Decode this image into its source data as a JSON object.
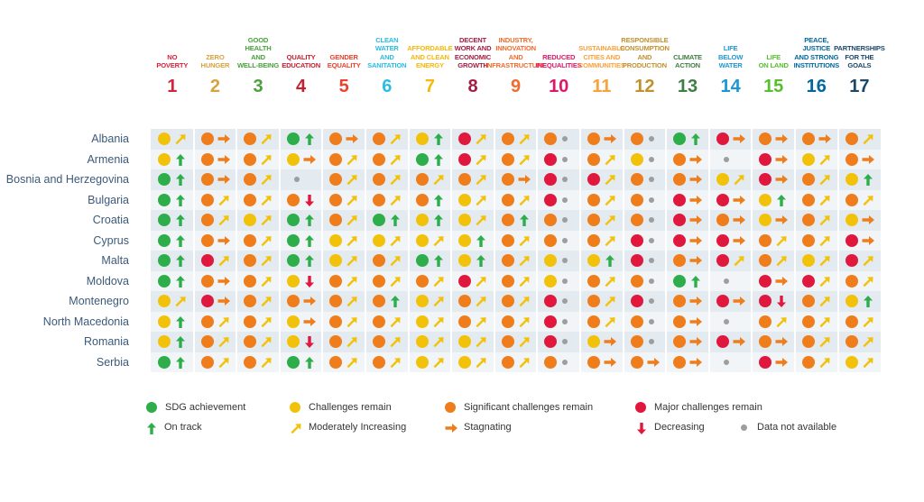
{
  "chart_data": {
    "type": "table",
    "goals": [
      {
        "number": "1",
        "label": [
          "NO",
          "POVERTY"
        ],
        "color": "#d4233c"
      },
      {
        "number": "2",
        "label": [
          "ZERO",
          "HUNGER"
        ],
        "color": "#d8a23c"
      },
      {
        "number": "3",
        "label": [
          "GOOD HEALTH",
          "AND",
          "WELL-BEING"
        ],
        "color": "#4aa13c"
      },
      {
        "number": "4",
        "label": [
          "QUALITY",
          "EDUCATION"
        ],
        "color": "#c6202f"
      },
      {
        "number": "5",
        "label": [
          "GENDER",
          "EQUALITY"
        ],
        "color": "#ef402c"
      },
      {
        "number": "6",
        "label": [
          "CLEAN WATER",
          "AND",
          "SANITATION"
        ],
        "color": "#29bde3"
      },
      {
        "number": "7",
        "label": [
          "AFFORDABLE",
          "AND CLEAN",
          "ENERGY"
        ],
        "color": "#f5b80c"
      },
      {
        "number": "8",
        "label": [
          "DECENT",
          "WORK AND",
          "ECONOMIC",
          "GROWTH"
        ],
        "color": "#a31c44"
      },
      {
        "number": "9",
        "label": [
          "INDUSTRY,",
          "INNOVATION",
          "AND",
          "INFRASTRUCTURE"
        ],
        "color": "#f26b2d"
      },
      {
        "number": "10",
        "label": [
          "REDUCED",
          "INEQUALITIES"
        ],
        "color": "#de1768"
      },
      {
        "number": "11",
        "label": [
          "SUSTAINABLE",
          "CITIES AND",
          "COMMUNITIES"
        ],
        "color": "#f9a13b"
      },
      {
        "number": "12",
        "label": [
          "RESPONSIBLE",
          "CONSUMPTION",
          "AND",
          "PRODUCTION"
        ],
        "color": "#c0912f"
      },
      {
        "number": "13",
        "label": [
          "CLIMATE",
          "ACTION"
        ],
        "color": "#3f7e44"
      },
      {
        "number": "14",
        "label": [
          "LIFE",
          "BELOW",
          "WATER"
        ],
        "color": "#1c97d3"
      },
      {
        "number": "15",
        "label": [
          "LIFE",
          "ON LAND"
        ],
        "color": "#56bf2b"
      },
      {
        "number": "16",
        "label": [
          "PEACE,",
          "JUSTICE",
          "AND STRONG",
          "INSTITUTIONS"
        ],
        "color": "#00689d"
      },
      {
        "number": "17",
        "label": [
          "PARTNERSHIPS",
          "FOR THE",
          "GOALS"
        ],
        "color": "#19486a"
      }
    ],
    "countries": [
      "Albania",
      "Armenia",
      "Bosnia and Herzegovina",
      "Bulgaria",
      "Croatia",
      "Cyprus",
      "Malta",
      "Moldova",
      "Montenegro",
      "North Macedonia",
      "Romania",
      "Serbia"
    ],
    "status_codes": {
      "G": "SDG achievement",
      "Y": "Challenges remain",
      "O": "Significant challenges remain",
      "R": "Major challenges remain",
      "N": "Data not available"
    },
    "trend_codes": {
      "u": "On track",
      "m": "Moderately Increasing",
      "s": "Stagnating",
      "d": "Decreasing",
      "n": "Data not available"
    },
    "cells": [
      [
        "Ym",
        "Os",
        "Om",
        "Gu",
        "Os",
        "Om",
        "Yu",
        "Rm",
        "Om",
        "On",
        "Os",
        "On",
        "Gu",
        "Rs",
        "Os",
        "Os",
        "Om"
      ],
      [
        "Yu",
        "Os",
        "Om",
        "Ys",
        "Om",
        "Om",
        "Gu",
        "Rm",
        "Om",
        "Rn",
        "Om",
        "Yn",
        "Os",
        "Nn",
        "Rs",
        "Ym",
        "Os"
      ],
      [
        "Gu",
        "Os",
        "Om",
        "Nn",
        "Om",
        "Om",
        "Om",
        "Om",
        "Os",
        "Rn",
        "Rm",
        "On",
        "Os",
        "Ym",
        "Rs",
        "Om",
        "Yu"
      ],
      [
        "Gu",
        "Om",
        "Om",
        "Od",
        "Om",
        "Om",
        "Ou",
        "Ym",
        "Om",
        "Rn",
        "Om",
        "On",
        "Rs",
        "Rs",
        "Yu",
        "Om",
        "Om"
      ],
      [
        "Gu",
        "Om",
        "Ym",
        "Gu",
        "Om",
        "Gu",
        "Yu",
        "Ym",
        "Ou",
        "On",
        "Om",
        "On",
        "Rs",
        "Os",
        "Ys",
        "Om",
        "Ys"
      ],
      [
        "Gu",
        "Os",
        "Om",
        "Gu",
        "Ym",
        "Ym",
        "Ym",
        "Yu",
        "Om",
        "On",
        "Om",
        "Rn",
        "Rs",
        "Rs",
        "Om",
        "Om",
        "Rs"
      ],
      [
        "Gu",
        "Rm",
        "Om",
        "Gu",
        "Ym",
        "Om",
        "Gu",
        "Yu",
        "Om",
        "Yn",
        "Yu",
        "Rn",
        "Os",
        "Rm",
        "Om",
        "Ym",
        "Rm"
      ],
      [
        "Gu",
        "Os",
        "Om",
        "Yd",
        "Om",
        "Om",
        "Om",
        "Rm",
        "Om",
        "Yn",
        "Om",
        "On",
        "Gu",
        "Nn",
        "Rs",
        "Rm",
        "Om"
      ],
      [
        "Ym",
        "Rs",
        "Om",
        "Os",
        "Om",
        "Ou",
        "Ym",
        "Om",
        "Om",
        "Rn",
        "Om",
        "Rn",
        "Os",
        "Rs",
        "Rd",
        "Om",
        "Yu"
      ],
      [
        "Yu",
        "Om",
        "Om",
        "Ys",
        "Om",
        "Om",
        "Ym",
        "Om",
        "Om",
        "Rn",
        "Om",
        "On",
        "Os",
        "Nn",
        "Om",
        "Om",
        "Om"
      ],
      [
        "Yu",
        "Om",
        "Om",
        "Yd",
        "Om",
        "Om",
        "Ym",
        "Ym",
        "Om",
        "Rn",
        "Ys",
        "On",
        "Os",
        "Rs",
        "Os",
        "Om",
        "Om"
      ],
      [
        "Gu",
        "Om",
        "Om",
        "Gu",
        "Om",
        "Om",
        "Ym",
        "Ym",
        "Om",
        "On",
        "Os",
        "Os",
        "Os",
        "Nn",
        "Rs",
        "Om",
        "Ym"
      ]
    ],
    "colors": {
      "G": "#2eae4b",
      "Y": "#f2c20b",
      "O": "#ef7d1b",
      "R": "#e0183e",
      "N": "#9e9e9e"
    },
    "legend": [
      {
        "code": "G",
        "label": "SDG achievement"
      },
      {
        "code": "Y",
        "label": "Challenges remain"
      },
      {
        "code": "O",
        "label": "Significant challenges remain"
      },
      {
        "code": "R",
        "label": "Major challenges remain"
      },
      {
        "code": "u",
        "label": "On track"
      },
      {
        "code": "m",
        "label": "Moderately Increasing"
      },
      {
        "code": "s",
        "label": "Stagnating"
      },
      {
        "code": "d",
        "label": "Decreasing"
      },
      {
        "code": "N",
        "label": "Data not available"
      }
    ]
  }
}
